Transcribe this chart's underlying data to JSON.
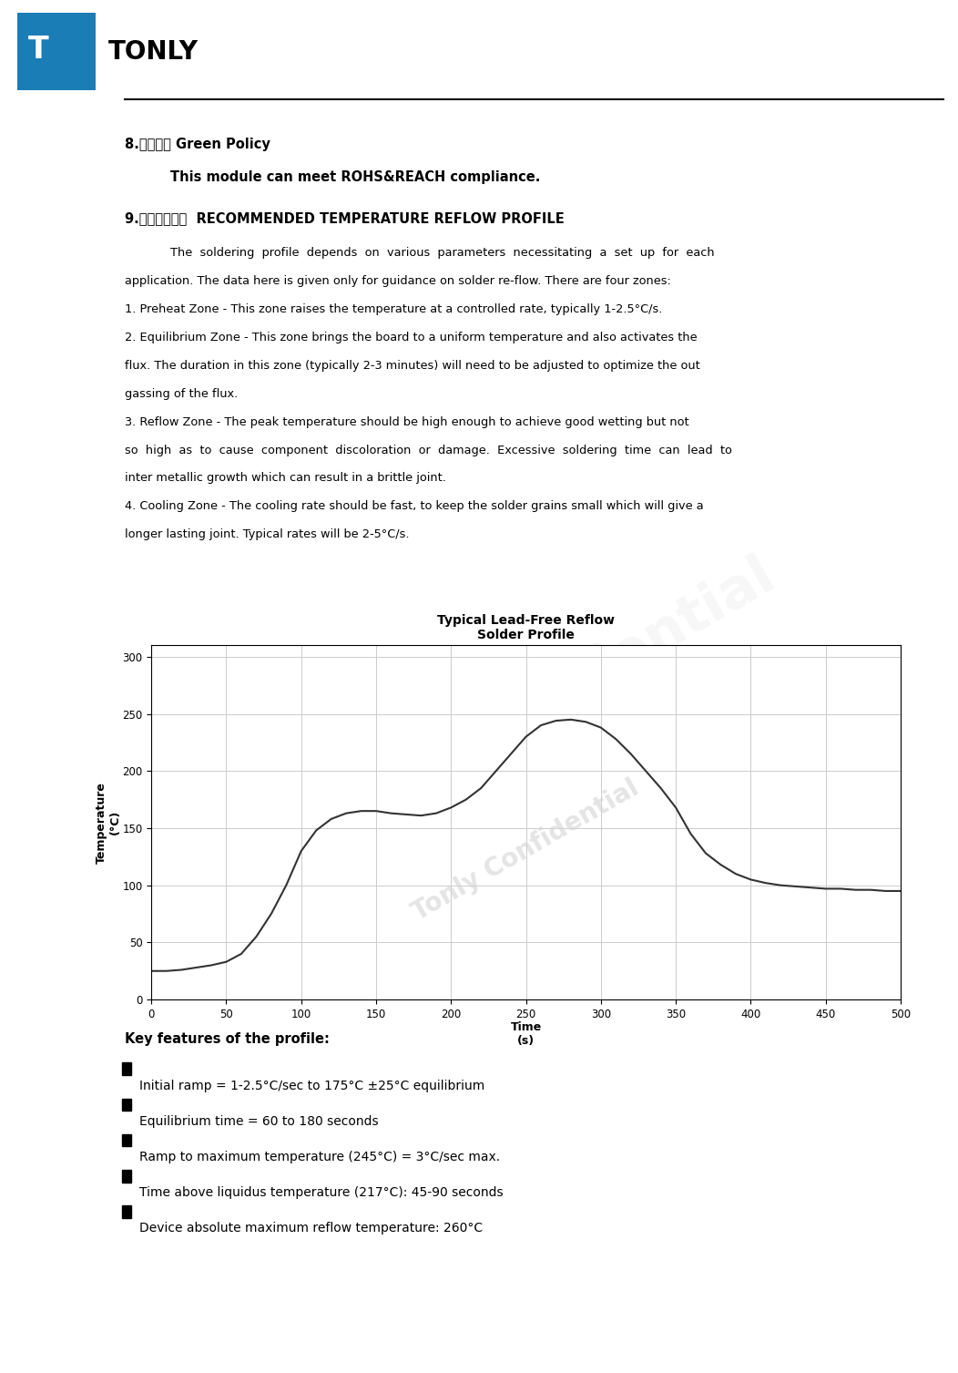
{
  "title": "Typical Lead-Free Reflow\nSolder Profile",
  "xlim": [
    0,
    500
  ],
  "ylim": [
    0,
    310
  ],
  "xticks": [
    0,
    50,
    100,
    150,
    200,
    250,
    300,
    350,
    400,
    450,
    500
  ],
  "yticks": [
    0,
    50,
    100,
    150,
    200,
    250,
    300
  ],
  "curve_color": "#333333",
  "grid_color": "#cccccc",
  "background_color": "#ffffff",
  "section8_heading": "8.环保声明 Green Policy",
  "section8_body": "This module can meet ROHS&REACH compliance.",
  "section9_heading": "9.推荐过炉温度  RECOMMENDED TEMPERATURE REFLOW PROFILE",
  "key_features_heading": "Key features of the profile:",
  "key_features": [
    "Initial ramp = 1-2.5°C/sec to 175°C ±25°C equilibrium",
    "Equilibrium time = 60 to 180 seconds",
    "Ramp to maximum temperature (245°C) = 3°C/sec max.",
    "Time above liquidus temperature (217°C): 45-90 seconds",
    "Device absolute maximum reflow temperature: 260°C"
  ],
  "para_lines": [
    "The  soldering  profile  depends  on  various  parameters  necessitating  a  set  up  for  each",
    "application. The data here is given only for guidance on solder re-flow. There are four zones:",
    "1. Preheat Zone - This zone raises the temperature at a controlled rate, typically 1-2.5°C/s.",
    "2. Equilibrium Zone - This zone brings the board to a uniform temperature and also activates the",
    "flux. The duration in this zone (typically 2-3 minutes) will need to be adjusted to optimize the out",
    "gassing of the flux.",
    "3. Reflow Zone - The peak temperature should be high enough to achieve good wetting but not",
    "so  high  as  to  cause  component  discoloration  or  damage.  Excessive  soldering  time  can  lead  to",
    "inter metallic growth which can result in a brittle joint.",
    "4. Cooling Zone - The cooling rate should be fast, to keep the solder grains small which will give a",
    "longer lasting joint. Typical rates will be 2-5°C/s."
  ],
  "curve_x": [
    0,
    10,
    20,
    30,
    40,
    50,
    60,
    70,
    80,
    90,
    100,
    110,
    120,
    130,
    140,
    150,
    160,
    170,
    180,
    190,
    200,
    210,
    220,
    230,
    240,
    250,
    260,
    270,
    280,
    290,
    300,
    310,
    320,
    330,
    340,
    350,
    360,
    370,
    380,
    390,
    400,
    410,
    420,
    430,
    440,
    450,
    460,
    470,
    480,
    490,
    500
  ],
  "curve_y": [
    25,
    25,
    26,
    28,
    30,
    33,
    40,
    55,
    75,
    100,
    130,
    148,
    158,
    163,
    165,
    165,
    163,
    162,
    161,
    163,
    168,
    175,
    185,
    200,
    215,
    230,
    240,
    244,
    245,
    243,
    238,
    228,
    215,
    200,
    185,
    168,
    145,
    128,
    118,
    110,
    105,
    102,
    100,
    99,
    98,
    97,
    97,
    96,
    96,
    95,
    95
  ],
  "logo_color": "#1a7db5",
  "line_color": "#000000",
  "watermark_text": "Tonly Confidential"
}
